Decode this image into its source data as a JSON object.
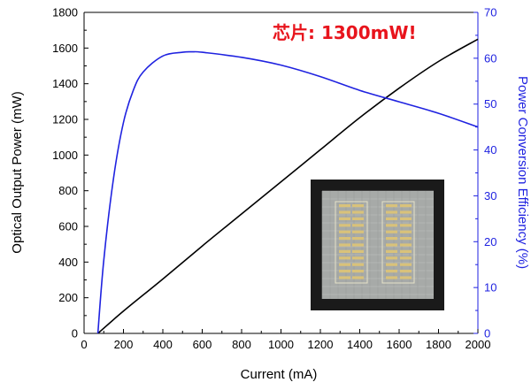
{
  "chart_data": {
    "type": "line",
    "annotation": "芯片: 1300mW!",
    "xlabel": "Current (mA)",
    "ylabel_left": "Optical Output Power (mW)",
    "ylabel_right": "Power Conversion Efficiency (%)",
    "xlim": [
      0,
      2000
    ],
    "ylim_left": [
      0,
      1800
    ],
    "ylim_right": [
      0,
      70
    ],
    "x_ticks": [
      0,
      200,
      400,
      600,
      800,
      1000,
      1200,
      1400,
      1600,
      1800,
      2000
    ],
    "y_ticks_left": [
      0,
      200,
      400,
      600,
      800,
      1000,
      1200,
      1400,
      1600,
      1800
    ],
    "y_ticks_right": [
      0,
      10,
      20,
      30,
      40,
      50,
      60,
      70
    ],
    "grid": false,
    "inset_image": "chip-photo",
    "series": [
      {
        "axis": "left",
        "color": "#000000",
        "x": [
          70,
          200,
          400,
          600,
          800,
          1000,
          1200,
          1400,
          1600,
          1800,
          2000
        ],
        "values": [
          0,
          125,
          305,
          490,
          670,
          850,
          1030,
          1210,
          1375,
          1525,
          1650
        ]
      },
      {
        "axis": "right",
        "color": "#1f22e0",
        "x": [
          70,
          100,
          150,
          200,
          250,
          300,
          400,
          500,
          550,
          600,
          800,
          1000,
          1200,
          1400,
          1600,
          1800,
          2000
        ],
        "values": [
          0,
          16,
          34,
          46,
          53,
          57,
          60.5,
          61.3,
          61.4,
          61.3,
          60.2,
          58.5,
          56,
          53,
          50.5,
          48,
          45
        ]
      }
    ]
  }
}
